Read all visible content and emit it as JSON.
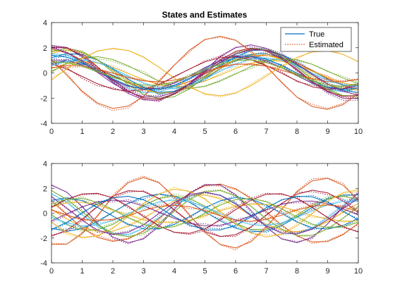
{
  "figure": {
    "title": "States and Estimates",
    "legend": {
      "entries": [
        "True",
        "Estimated"
      ],
      "placement": "top-right"
    }
  },
  "colors": [
    "#0072BD",
    "#D95319",
    "#EDB120",
    "#7E2F8E",
    "#77AC30",
    "#4DBEEE",
    "#A2142F"
  ],
  "chart_data": [
    {
      "type": "line",
      "title": "States and Estimates",
      "xlabel": "",
      "ylabel": "",
      "xlim": [
        0,
        10
      ],
      "ylim": [
        -4,
        4
      ],
      "xticks": [
        0,
        1,
        2,
        3,
        4,
        5,
        6,
        7,
        8,
        9,
        10
      ],
      "yticks": [
        -4,
        -2,
        0,
        2,
        4
      ],
      "grid": false,
      "legend": [
        "True",
        "Estimated"
      ],
      "legend_placement": "top-right",
      "series_style": {
        "true": "solid",
        "estimated": "dotted"
      },
      "x": [
        0,
        0.5,
        1,
        1.5,
        2,
        2.5,
        3,
        3.5,
        4,
        4.5,
        5,
        5.5,
        6,
        6.5,
        7,
        7.5,
        8,
        8.5,
        9,
        9.5,
        10
      ],
      "series": [
        {
          "values": [
            0.74,
            0.96,
            0.72,
            0.32,
            -0.18,
            -0.78,
            -1.31,
            -1.56,
            -1.45,
            -0.96,
            -0.25,
            0.55,
            1.28,
            1.76,
            1.83,
            1.46,
            0.84,
            0.15,
            -0.49,
            -0.95,
            -1.07
          ]
        },
        {
          "values": [
            1.91,
            1.57,
            0.99,
            0.37,
            -0.24,
            -0.8,
            -1.18,
            -1.29,
            -1.1,
            -0.67,
            -0.09,
            0.49,
            0.98,
            1.3,
            1.38,
            1.21,
            0.8,
            0.21,
            -0.45,
            -1.0,
            -1.35
          ]
        },
        {
          "values": [
            0.36,
            0.74,
            0.92,
            0.81,
            0.45,
            -0.04,
            -0.54,
            -0.94,
            -1.12,
            -0.99,
            -0.64,
            -0.17,
            0.35,
            0.77,
            0.99,
            0.93,
            0.61,
            0.14,
            -0.38,
            -0.8,
            -1.0
          ]
        },
        {
          "values": [
            2.18,
            2.02,
            1.3,
            0.31,
            -0.74,
            -1.63,
            -2.14,
            -2.16,
            -1.68,
            -0.81,
            0.25,
            1.28,
            2.0,
            2.23,
            1.95,
            1.26,
            0.31,
            -0.69,
            -1.52,
            -2.0,
            -2.03
          ]
        },
        {
          "values": [
            0.11,
            0.76,
            1.17,
            1.29,
            1.07,
            0.57,
            -0.05,
            -0.65,
            -1.08,
            -1.23,
            -1.07,
            -0.65,
            -0.08,
            0.51,
            0.96,
            1.16,
            1.06,
            0.69,
            0.15,
            -0.41,
            -0.84
          ]
        },
        {
          "values": [
            1.52,
            1.42,
            0.93,
            0.2,
            -0.57,
            -1.21,
            -1.55,
            -1.52,
            -1.11,
            -0.45,
            0.32,
            0.98,
            1.39,
            1.44,
            1.13,
            0.55,
            -0.15,
            -0.85,
            -1.32,
            -1.48,
            -1.27
          ]
        },
        {
          "values": [
            0.73,
            0.31,
            -0.28,
            -0.86,
            -1.28,
            -1.45,
            -1.3,
            -0.9,
            -0.31,
            0.32,
            0.88,
            1.22,
            1.28,
            1.04,
            0.58,
            -0.02,
            -0.63,
            -1.1,
            -1.31,
            -1.23,
            -0.89
          ]
        },
        {
          "values": [
            1.21,
            1.54,
            1.46,
            1.02,
            0.3,
            -0.49,
            -1.16,
            -1.55,
            -1.55,
            -1.16,
            -0.46,
            0.33,
            1.04,
            1.47,
            1.54,
            1.23,
            0.63,
            -0.13,
            -0.87,
            -1.38,
            -1.55
          ]
        },
        {
          "values": [
            1.06,
            -0.19,
            -1.44,
            -2.39,
            -2.82,
            -2.63,
            -1.86,
            -0.7,
            0.61,
            1.81,
            2.64,
            2.92,
            2.6,
            1.75,
            0.55,
            -0.76,
            -1.92,
            -2.67,
            -2.89,
            -2.52,
            -1.64
          ]
        },
        {
          "values": [
            1.56,
            1.83,
            1.63,
            1.03,
            0.21,
            -0.63,
            -1.28,
            -1.6,
            -1.53,
            -1.09,
            -0.39,
            0.38,
            1.03,
            1.39,
            1.41,
            1.07,
            0.47,
            -0.24,
            -0.88,
            -1.26,
            -1.29
          ]
        },
        {
          "values": [
            0.97,
            0.98,
            0.64,
            0.07,
            -0.55,
            -1.05,
            -1.29,
            -1.21,
            -0.83,
            -0.24,
            0.42,
            0.98,
            1.29,
            1.28,
            0.96,
            0.41,
            -0.23,
            -0.81,
            -1.19,
            -1.27,
            -1.03
          ]
        },
        {
          "values": [
            1.68,
            1.96,
            1.72,
            1.03,
            0.06,
            -0.94,
            -1.7,
            -2.04,
            -1.89,
            -1.27,
            -0.34,
            0.67,
            1.48,
            1.9,
            1.84,
            1.31,
            0.45,
            -0.52,
            -1.33,
            -1.8,
            -1.8
          ]
        },
        {
          "values": [
            0.58,
            0.95,
            1.04,
            0.82,
            0.35,
            -0.23,
            -0.79,
            -1.16,
            -1.23,
            -0.98,
            -0.47,
            0.14,
            0.71,
            1.1,
            1.21,
            1.01,
            0.55,
            -0.03,
            -0.59,
            -0.98,
            -1.08
          ]
        },
        {
          "values": [
            2.04,
            1.97,
            1.4,
            0.48,
            -0.55,
            -1.44,
            -1.98,
            -2.07,
            -1.67,
            -0.88,
            0.1,
            1.04,
            1.71,
            1.97,
            1.75,
            1.12,
            0.22,
            -0.72,
            -1.46,
            -1.85,
            -1.8
          ]
        },
        {
          "values": [
            1.41,
            1.25,
            0.8,
            0.18,
            -0.47,
            -1.0,
            -1.29,
            -1.29,
            -0.98,
            -0.44,
            0.2,
            0.8,
            1.2,
            1.31,
            1.09,
            0.61,
            -0.01,
            -0.63,
            -1.1,
            -1.31,
            -1.2
          ]
        },
        {
          "values": [
            0.41,
            0.6,
            0.57,
            0.33,
            -0.02,
            -0.38,
            -0.63,
            -0.7,
            -0.57,
            -0.27,
            0.1,
            0.45,
            0.68,
            0.71,
            0.54,
            0.22,
            -0.15,
            -0.48,
            -0.68,
            -0.7,
            -0.52
          ]
        },
        {
          "values": [
            -0.57,
            0.34,
            1.16,
            1.73,
            1.96,
            1.78,
            1.24,
            0.46,
            -0.39,
            -1.14,
            -1.65,
            -1.81,
            -1.58,
            -1.02,
            -0.26,
            0.55,
            1.23,
            1.66,
            1.75,
            1.47,
            0.89
          ]
        },
        {
          "values": [
            2.02,
            1.6,
            0.89,
            0.03,
            -0.82,
            -1.5,
            -1.89,
            -1.9,
            -1.52,
            -0.84,
            0.01,
            0.84,
            1.49,
            1.84,
            1.8,
            1.4,
            0.71,
            -0.1,
            -0.89,
            -1.47,
            -1.75
          ]
        },
        {
          "values": [
            0.86,
            0.83,
            0.57,
            0.14,
            -0.34,
            -0.74,
            -0.97,
            -0.96,
            -0.71,
            -0.27,
            0.24,
            0.7,
            0.99,
            1.03,
            0.82,
            0.4,
            -0.11,
            -0.6,
            -0.95,
            -1.06,
            -0.91
          ]
        }
      ]
    },
    {
      "type": "line",
      "title": "",
      "xlabel": "",
      "ylabel": "",
      "xlim": [
        0,
        10
      ],
      "ylim": [
        -4,
        4
      ],
      "xticks": [
        0,
        1,
        2,
        3,
        4,
        5,
        6,
        7,
        8,
        9,
        10
      ],
      "yticks": [
        -4,
        -2,
        0,
        2,
        4
      ],
      "grid": false,
      "series_style": {
        "true": "solid",
        "estimated": "dotted"
      },
      "x": [
        0,
        0.5,
        1,
        1.5,
        2,
        2.5,
        3,
        3.5,
        4,
        4.5,
        5,
        5.5,
        6,
        6.5,
        7,
        7.5,
        8,
        8.5,
        9,
        9.5,
        10
      ],
      "series": [
        {
          "values": [
            -1.22,
            -1.45,
            -1.25,
            -0.69,
            0.06,
            0.8,
            1.33,
            1.55,
            1.38,
            0.87,
            0.13,
            -0.62,
            -1.21,
            -1.51,
            -1.43,
            -1.0,
            -0.3,
            0.48,
            1.11,
            1.46,
            1.47
          ]
        },
        {
          "values": [
            0.99,
            -0.12,
            -1.18,
            -1.95,
            -2.27,
            -2.07,
            -1.41,
            -0.43,
            0.64,
            1.61,
            2.21,
            2.35,
            1.97,
            1.17,
            0.12,
            -0.96,
            -1.84,
            -2.31,
            -2.28,
            -1.73,
            -0.81
          ]
        },
        {
          "values": [
            0.31,
            -0.47,
            -1.11,
            -1.46,
            -1.44,
            -1.06,
            -0.42,
            0.33,
            0.99,
            1.4,
            1.46,
            1.15,
            0.56,
            -0.19,
            -0.88,
            -1.35,
            -1.49,
            -1.25,
            -0.69,
            0.06,
            0.78
          ]
        },
        {
          "values": [
            2.25,
            1.69,
            0.51,
            -0.84,
            -1.92,
            -2.38,
            -2.07,
            -1.07,
            0.3,
            1.57,
            2.3,
            2.27,
            1.5,
            0.22,
            -1.13,
            -2.07,
            -2.38,
            -1.93,
            -0.86,
            0.48,
            1.63
          ]
        },
        {
          "values": [
            -0.15,
            -0.9,
            -1.35,
            -1.34,
            -0.9,
            -0.18,
            0.6,
            1.18,
            1.39,
            1.17,
            0.58,
            -0.17,
            -0.88,
            -1.3,
            -1.3,
            -0.87,
            -0.14,
            0.63,
            1.19,
            1.36,
            1.11
          ]
        },
        {
          "values": [
            1.59,
            0.86,
            -0.13,
            -1.06,
            -1.65,
            -1.71,
            -1.22,
            -0.36,
            0.61,
            1.37,
            1.68,
            1.47,
            0.8,
            -0.14,
            -1.04,
            -1.6,
            -1.66,
            -1.19,
            -0.35,
            0.58,
            1.29
          ]
        },
        {
          "values": [
            -1.85,
            -1.36,
            -0.48,
            0.52,
            1.37,
            1.81,
            1.74,
            1.18,
            0.29,
            -0.69,
            -1.49,
            -1.88,
            -1.73,
            -1.1,
            -0.17,
            0.79,
            1.53,
            1.85,
            1.64,
            0.98,
            0.05
          ]
        },
        {
          "values": [
            1.04,
            1.24,
            1.01,
            0.46,
            -0.24,
            -0.88,
            -1.26,
            -1.27,
            -0.9,
            -0.27,
            0.44,
            1.0,
            1.26,
            1.13,
            0.66,
            -0.03,
            -0.71,
            -1.17,
            -1.28,
            -0.99,
            -0.41
          ]
        },
        {
          "values": [
            -2.52,
            -2.49,
            -1.6,
            -0.18,
            1.31,
            2.45,
            2.87,
            2.45,
            1.33,
            -0.15,
            -1.56,
            -2.52,
            -2.79,
            -2.3,
            -1.15,
            0.33,
            1.71,
            2.61,
            2.81,
            2.25,
            1.08
          ]
        },
        {
          "values": [
            0.5,
            0.82,
            0.88,
            0.66,
            0.27,
            -0.16,
            -0.53,
            -0.75,
            -0.76,
            -0.56,
            -0.2,
            0.2,
            0.53,
            0.72,
            0.71,
            0.51,
            0.17,
            -0.19,
            -0.49,
            -0.64,
            -0.62
          ]
        },
        {
          "values": [
            -0.62,
            -0.04,
            0.51,
            0.9,
            1.05,
            0.93,
            0.58,
            0.09,
            -0.42,
            -0.82,
            -1.02,
            -0.97,
            -0.68,
            -0.22,
            0.28,
            0.71,
            0.96,
            0.98,
            0.76,
            0.35,
            -0.15
          ]
        },
        {
          "values": [
            1.81,
            1.11,
            0.11,
            -0.91,
            -1.64,
            -1.89,
            -1.6,
            -0.85,
            0.15,
            1.1,
            1.71,
            1.82,
            1.38,
            0.55,
            -0.44,
            -1.3,
            -1.8,
            -1.78,
            -1.26,
            -0.4,
            0.57
          ]
        },
        {
          "values": [
            -0.32,
            -0.79,
            -1.02,
            -0.95,
            -0.59,
            -0.05,
            0.5,
            0.91,
            1.06,
            0.91,
            0.51,
            -0.04,
            -0.56,
            -0.92,
            -1.0,
            -0.79,
            -0.34,
            0.2,
            0.67,
            0.95,
            0.96
          ]
        },
        {
          "values": [
            0.46,
            1.13,
            1.55,
            1.6,
            1.24,
            0.56,
            -0.27,
            -1.03,
            -1.53,
            -1.62,
            -1.26,
            -0.55,
            0.29,
            1.05,
            1.52,
            1.57,
            1.18,
            0.47,
            -0.35,
            -1.08,
            -1.52
          ]
        },
        {
          "values": [
            -1.31,
            -0.73,
            0.04,
            0.76,
            1.24,
            1.36,
            1.07,
            0.47,
            -0.28,
            -0.95,
            -1.34,
            -1.35,
            -0.97,
            -0.31,
            0.44,
            1.06,
            1.37,
            1.31,
            0.88,
            0.18,
            -0.56
          ]
        },
        {
          "values": [
            0.23,
            -0.17,
            -0.49,
            -0.61,
            -0.49,
            -0.18,
            0.21,
            0.52,
            0.64,
            0.52,
            0.2,
            -0.21,
            -0.54,
            -0.66,
            -0.51,
            -0.16,
            0.25,
            0.57,
            0.67,
            0.5,
            0.13
          ]
        },
        {
          "values": [
            -0.72,
            -1.55,
            -1.95,
            -1.82,
            -1.21,
            -0.26,
            0.76,
            1.56,
            1.93,
            1.77,
            1.13,
            0.15,
            -0.85,
            -1.59,
            -1.92,
            -1.71,
            -1.02,
            -0.03,
            0.96,
            1.65,
            1.88
          ]
        },
        {
          "values": [
            1.32,
            0.42,
            -0.58,
            -1.37,
            -1.72,
            -1.55,
            -0.92,
            -0.03,
            0.86,
            1.5,
            1.71,
            1.43,
            0.73,
            -0.19,
            -1.03,
            -1.59,
            -1.68,
            -1.28,
            -0.51,
            0.4,
            1.17
          ]
        },
        {
          "values": [
            0.72,
            1.13,
            1.19,
            0.87,
            0.29,
            -0.37,
            -0.92,
            -1.19,
            -1.09,
            -0.65,
            -0.0,
            0.65,
            1.09,
            1.19,
            0.92,
            0.36,
            -0.3,
            -0.88,
            -1.18,
            -1.12,
            -0.73
          ]
        }
      ]
    }
  ]
}
